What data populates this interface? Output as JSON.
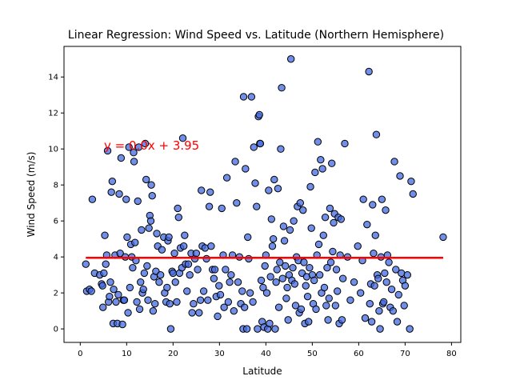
{
  "chart_data": {
    "type": "scatter",
    "title": "Linear Regression: Wind Speed vs. Latitude (Northern Hemisphere)",
    "xlabel": "Latitude",
    "ylabel": "Wind Speed (m/s)",
    "xlim": [
      -3.5,
      82
    ],
    "ylim": [
      -0.75,
      15.7
    ],
    "xticks": [
      0,
      10,
      20,
      30,
      40,
      50,
      60,
      70,
      80
    ],
    "yticks": [
      0,
      2,
      4,
      6,
      8,
      10,
      12,
      14
    ],
    "grid": false,
    "annotation": "y = 0.0x + 3.95",
    "colors": {
      "points": "#4169e1",
      "point_edge": "#000000",
      "regression": "#ff0000",
      "annotation": "#ff0000"
    },
    "regression": {
      "slope": 0.0,
      "intercept": 3.95,
      "x_range": [
        1.2,
        78.2
      ]
    },
    "points": [
      [
        1.2,
        3.6
      ],
      [
        1.4,
        2.1
      ],
      [
        2.0,
        2.2
      ],
      [
        2.4,
        2.1
      ],
      [
        2.6,
        7.2
      ],
      [
        3.1,
        3.1
      ],
      [
        4.2,
        3.0
      ],
      [
        4.6,
        2.5
      ],
      [
        4.8,
        2.4
      ],
      [
        4.9,
        1.2
      ],
      [
        5.1,
        3.1
      ],
      [
        5.3,
        5.2
      ],
      [
        5.5,
        3.6
      ],
      [
        5.7,
        4.1
      ],
      [
        5.9,
        9.9
      ],
      [
        6.1,
        1.5
      ],
      [
        6.3,
        1.8
      ],
      [
        6.5,
        2.6
      ],
      [
        6.7,
        7.6
      ],
      [
        6.9,
        8.2
      ],
      [
        7.1,
        0.3
      ],
      [
        7.2,
        2.2
      ],
      [
        7.5,
        4.1
      ],
      [
        7.7,
        1.5
      ],
      [
        8.0,
        0.3
      ],
      [
        8.2,
        1.9
      ],
      [
        8.4,
        7.5
      ],
      [
        8.6,
        4.2
      ],
      [
        8.8,
        9.5
      ],
      [
        9.1,
        0.25
      ],
      [
        9.3,
        1.6
      ],
      [
        9.5,
        1.6
      ],
      [
        9.7,
        4.0
      ],
      [
        9.9,
        7.2
      ],
      [
        10.1,
        5.1
      ],
      [
        10.3,
        0.9
      ],
      [
        10.5,
        10.1
      ],
      [
        10.7,
        2.3
      ],
      [
        10.9,
        4.7
      ],
      [
        11.1,
        4.0
      ],
      [
        11.3,
        3.4
      ],
      [
        11.5,
        9.8
      ],
      [
        11.6,
        9.3
      ],
      [
        11.8,
        4.8
      ],
      [
        12.0,
        3.8
      ],
      [
        12.2,
        1.5
      ],
      [
        12.4,
        7.1
      ],
      [
        12.6,
        10.1
      ],
      [
        12.8,
        1.1
      ],
      [
        13.0,
        2.6
      ],
      [
        13.2,
        5.5
      ],
      [
        13.4,
        2.0
      ],
      [
        13.6,
        2.2
      ],
      [
        13.8,
        3.1
      ],
      [
        14.0,
        10.3
      ],
      [
        14.2,
        8.3
      ],
      [
        14.4,
        3.5
      ],
      [
        14.6,
        1.6
      ],
      [
        14.8,
        5.6
      ],
      [
        15.0,
        6.3
      ],
      [
        15.2,
        6.0
      ],
      [
        15.3,
        8.0
      ],
      [
        15.5,
        7.4
      ],
      [
        15.7,
        1.0
      ],
      [
        15.9,
        2.9
      ],
      [
        16.1,
        1.4
      ],
      [
        16.3,
        3.2
      ],
      [
        16.5,
        5.3
      ],
      [
        16.7,
        4.6
      ],
      [
        17.0,
        2.6
      ],
      [
        17.3,
        3.0
      ],
      [
        17.6,
        4.4
      ],
      [
        18.0,
        5.1
      ],
      [
        18.2,
        2.0
      ],
      [
        18.5,
        1.5
      ],
      [
        18.7,
        2.3
      ],
      [
        18.9,
        4.9
      ],
      [
        19.1,
        5.1
      ],
      [
        19.3,
        1.4
      ],
      [
        19.5,
        0.0
      ],
      [
        19.8,
        3.2
      ],
      [
        20.0,
        3.1
      ],
      [
        20.3,
        4.2
      ],
      [
        20.5,
        2.6
      ],
      [
        20.8,
        1.5
      ],
      [
        21.0,
        6.7
      ],
      [
        21.2,
        6.2
      ],
      [
        21.4,
        3.1
      ],
      [
        21.6,
        4.5
      ],
      [
        21.9,
        3.4
      ],
      [
        22.1,
        10.6
      ],
      [
        22.3,
        4.6
      ],
      [
        22.5,
        5.2
      ],
      [
        22.7,
        3.6
      ],
      [
        23.0,
        2.1
      ],
      [
        23.3,
        3.6
      ],
      [
        23.6,
        3.0
      ],
      [
        23.9,
        4.2
      ],
      [
        24.1,
        0.9
      ],
      [
        24.4,
        1.4
      ],
      [
        24.7,
        3.9
      ],
      [
        25.0,
        4.2
      ],
      [
        25.3,
        3.3
      ],
      [
        25.6,
        0.9
      ],
      [
        25.9,
        1.6
      ],
      [
        26.1,
        7.7
      ],
      [
        26.3,
        4.6
      ],
      [
        26.6,
        2.1
      ],
      [
        26.9,
        4.5
      ],
      [
        27.2,
        3.9
      ],
      [
        27.5,
        1.6
      ],
      [
        27.8,
        6.8
      ],
      [
        28.0,
        7.6
      ],
      [
        28.2,
        4.6
      ],
      [
        28.5,
        3.3
      ],
      [
        28.8,
        2.8
      ],
      [
        29.0,
        3.3
      ],
      [
        29.3,
        1.8
      ],
      [
        29.6,
        0.7
      ],
      [
        29.9,
        2.4
      ],
      [
        30.2,
        1.9
      ],
      [
        30.5,
        6.7
      ],
      [
        30.8,
        4.1
      ],
      [
        31.0,
        1.2
      ],
      [
        31.3,
        3.3
      ],
      [
        31.6,
        8.4
      ],
      [
        31.9,
        1.5
      ],
      [
        32.2,
        2.6
      ],
      [
        32.5,
        3.0
      ],
      [
        32.8,
        4.1
      ],
      [
        33.1,
        1.0
      ],
      [
        33.4,
        9.3
      ],
      [
        33.7,
        7.0
      ],
      [
        34.0,
        2.6
      ],
      [
        34.3,
        4.0
      ],
      [
        34.6,
        1.4
      ],
      [
        34.9,
        2.1
      ],
      [
        35.1,
        0.0
      ],
      [
        35.2,
        12.9
      ],
      [
        35.4,
        1.2
      ],
      [
        35.6,
        8.9
      ],
      [
        35.9,
        0.0
      ],
      [
        36.1,
        5.1
      ],
      [
        36.3,
        3.9
      ],
      [
        36.6,
        2.0
      ],
      [
        36.9,
        12.9
      ],
      [
        37.2,
        1.5
      ],
      [
        37.4,
        10.1
      ],
      [
        37.7,
        8.1
      ],
      [
        38.0,
        6.8
      ],
      [
        38.2,
        0.0
      ],
      [
        38.4,
        11.8
      ],
      [
        38.6,
        11.9
      ],
      [
        38.7,
        10.3
      ],
      [
        38.8,
        10.3
      ],
      [
        39.0,
        2.7
      ],
      [
        39.2,
        0.4
      ],
      [
        39.4,
        2.3
      ],
      [
        39.6,
        0.1
      ],
      [
        39.8,
        3.5
      ],
      [
        40.0,
        4.1
      ],
      [
        40.2,
        2.0
      ],
      [
        40.4,
        0.0
      ],
      [
        40.6,
        7.7
      ],
      [
        40.8,
        0.3
      ],
      [
        41.0,
        2.9
      ],
      [
        41.2,
        6.1
      ],
      [
        41.4,
        4.6
      ],
      [
        41.6,
        5.0
      ],
      [
        41.8,
        8.3
      ],
      [
        42.0,
        0.0
      ],
      [
        42.2,
        2.6
      ],
      [
        42.4,
        3.3
      ],
      [
        42.6,
        7.8
      ],
      [
        42.8,
        1.2
      ],
      [
        43.0,
        3.7
      ],
      [
        43.2,
        10.0
      ],
      [
        43.4,
        13.4
      ],
      [
        43.6,
        2.8
      ],
      [
        43.8,
        5.7
      ],
      [
        44.0,
        4.9
      ],
      [
        44.2,
        3.5
      ],
      [
        44.4,
        1.7
      ],
      [
        44.6,
        2.3
      ],
      [
        44.8,
        0.5
      ],
      [
        45.0,
        3.0
      ],
      [
        45.2,
        5.5
      ],
      [
        45.4,
        15.0
      ],
      [
        45.6,
        2.7
      ],
      [
        45.8,
        3.4
      ],
      [
        46.0,
        6.0
      ],
      [
        46.2,
        2.5
      ],
      [
        46.4,
        1.3
      ],
      [
        46.6,
        4.0
      ],
      [
        46.8,
        6.8
      ],
      [
        47.0,
        3.8
      ],
      [
        47.2,
        0.9
      ],
      [
        47.4,
        7.0
      ],
      [
        47.6,
        1.1
      ],
      [
        47.8,
        3.1
      ],
      [
        48.0,
        6.6
      ],
      [
        48.2,
        3.7
      ],
      [
        48.4,
        0.3
      ],
      [
        48.6,
        2.4
      ],
      [
        48.8,
        2.9
      ],
      [
        49.0,
        1.8
      ],
      [
        49.2,
        0.4
      ],
      [
        49.4,
        3.4
      ],
      [
        49.6,
        7.9
      ],
      [
        49.8,
        5.6
      ],
      [
        50.0,
        3.0
      ],
      [
        50.2,
        1.4
      ],
      [
        50.4,
        2.7
      ],
      [
        50.6,
        8.7
      ],
      [
        50.8,
        1.1
      ],
      [
        51.0,
        4.1
      ],
      [
        51.2,
        10.4
      ],
      [
        51.4,
        4.7
      ],
      [
        51.6,
        3.0
      ],
      [
        51.8,
        9.4
      ],
      [
        52.0,
        2.0
      ],
      [
        52.2,
        8.9
      ],
      [
        52.4,
        5.2
      ],
      [
        52.6,
        2.3
      ],
      [
        52.8,
        6.2
      ],
      [
        53.0,
        1.3
      ],
      [
        53.2,
        3.4
      ],
      [
        53.4,
        0.5
      ],
      [
        53.6,
        1.7
      ],
      [
        53.8,
        6.7
      ],
      [
        54.0,
        3.7
      ],
      [
        54.2,
        9.2
      ],
      [
        54.4,
        4.3
      ],
      [
        54.6,
        5.9
      ],
      [
        54.8,
        6.4
      ],
      [
        55.0,
        1.3
      ],
      [
        55.2,
        3.3
      ],
      [
        55.4,
        2.1
      ],
      [
        55.6,
        6.2
      ],
      [
        55.8,
        0.3
      ],
      [
        56.0,
        4.1
      ],
      [
        56.2,
        6.1
      ],
      [
        56.4,
        0.5
      ],
      [
        56.6,
        2.8
      ],
      [
        57.0,
        10.3
      ],
      [
        57.6,
        4.0
      ],
      [
        58.2,
        1.6
      ],
      [
        59.0,
        2.6
      ],
      [
        59.8,
        4.6
      ],
      [
        60.4,
        2.0
      ],
      [
        60.8,
        3.8
      ],
      [
        61.0,
        7.2
      ],
      [
        61.4,
        0.6
      ],
      [
        61.8,
        5.8
      ],
      [
        62.2,
        14.3
      ],
      [
        62.4,
        1.4
      ],
      [
        62.6,
        2.5
      ],
      [
        62.8,
        0.4
      ],
      [
        63.0,
        6.9
      ],
      [
        63.2,
        4.2
      ],
      [
        63.4,
        2.4
      ],
      [
        63.6,
        5.2
      ],
      [
        63.8,
        10.8
      ],
      [
        64.0,
        3.0
      ],
      [
        64.2,
        2.8
      ],
      [
        64.4,
        1.0
      ],
      [
        64.6,
        0.0
      ],
      [
        64.8,
        4.0
      ],
      [
        65.0,
        7.2
      ],
      [
        65.2,
        1.4
      ],
      [
        65.4,
        1.5
      ],
      [
        65.6,
        3.1
      ],
      [
        65.8,
        6.6
      ],
      [
        66.0,
        2.6
      ],
      [
        66.2,
        4.1
      ],
      [
        66.5,
        3.7
      ],
      [
        66.8,
        1.2
      ],
      [
        67.1,
        2.2
      ],
      [
        67.4,
        1.0
      ],
      [
        67.7,
        9.3
      ],
      [
        68.0,
        3.3
      ],
      [
        68.3,
        0.4
      ],
      [
        68.6,
        1.9
      ],
      [
        68.9,
        8.5
      ],
      [
        69.2,
        3.1
      ],
      [
        69.5,
        2.7
      ],
      [
        69.8,
        1.3
      ],
      [
        70.0,
        2.4
      ],
      [
        70.5,
        3.0
      ],
      [
        71.0,
        0.0
      ],
      [
        71.3,
        8.2
      ],
      [
        71.7,
        7.5
      ],
      [
        78.2,
        5.1
      ]
    ]
  }
}
